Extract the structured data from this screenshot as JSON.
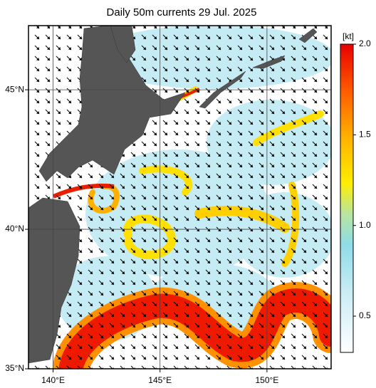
{
  "title": "Daily 50m currents 29 Jul. 2025",
  "map": {
    "xlim": [
      138.85,
      153
    ],
    "ylim": [
      35,
      47.3
    ],
    "xticks": [
      {
        "value": 140,
        "label": "140°E"
      },
      {
        "value": 145,
        "label": "145°E"
      },
      {
        "value": 150,
        "label": "150°E"
      }
    ],
    "yticks": [
      {
        "value": 35,
        "label": "35°N"
      },
      {
        "value": 40,
        "label": "40°N"
      },
      {
        "value": 45,
        "label": "45°N"
      }
    ],
    "grid": true
  },
  "colorbar": {
    "unit": "[kt]",
    "lim": [
      0.3,
      2.0
    ],
    "ticks": [
      0.5,
      {
        "value": 1.0,
        "label": "1.0"
      },
      1.5,
      {
        "value": 2.0,
        "label": "2.0"
      }
    ]
  }
}
